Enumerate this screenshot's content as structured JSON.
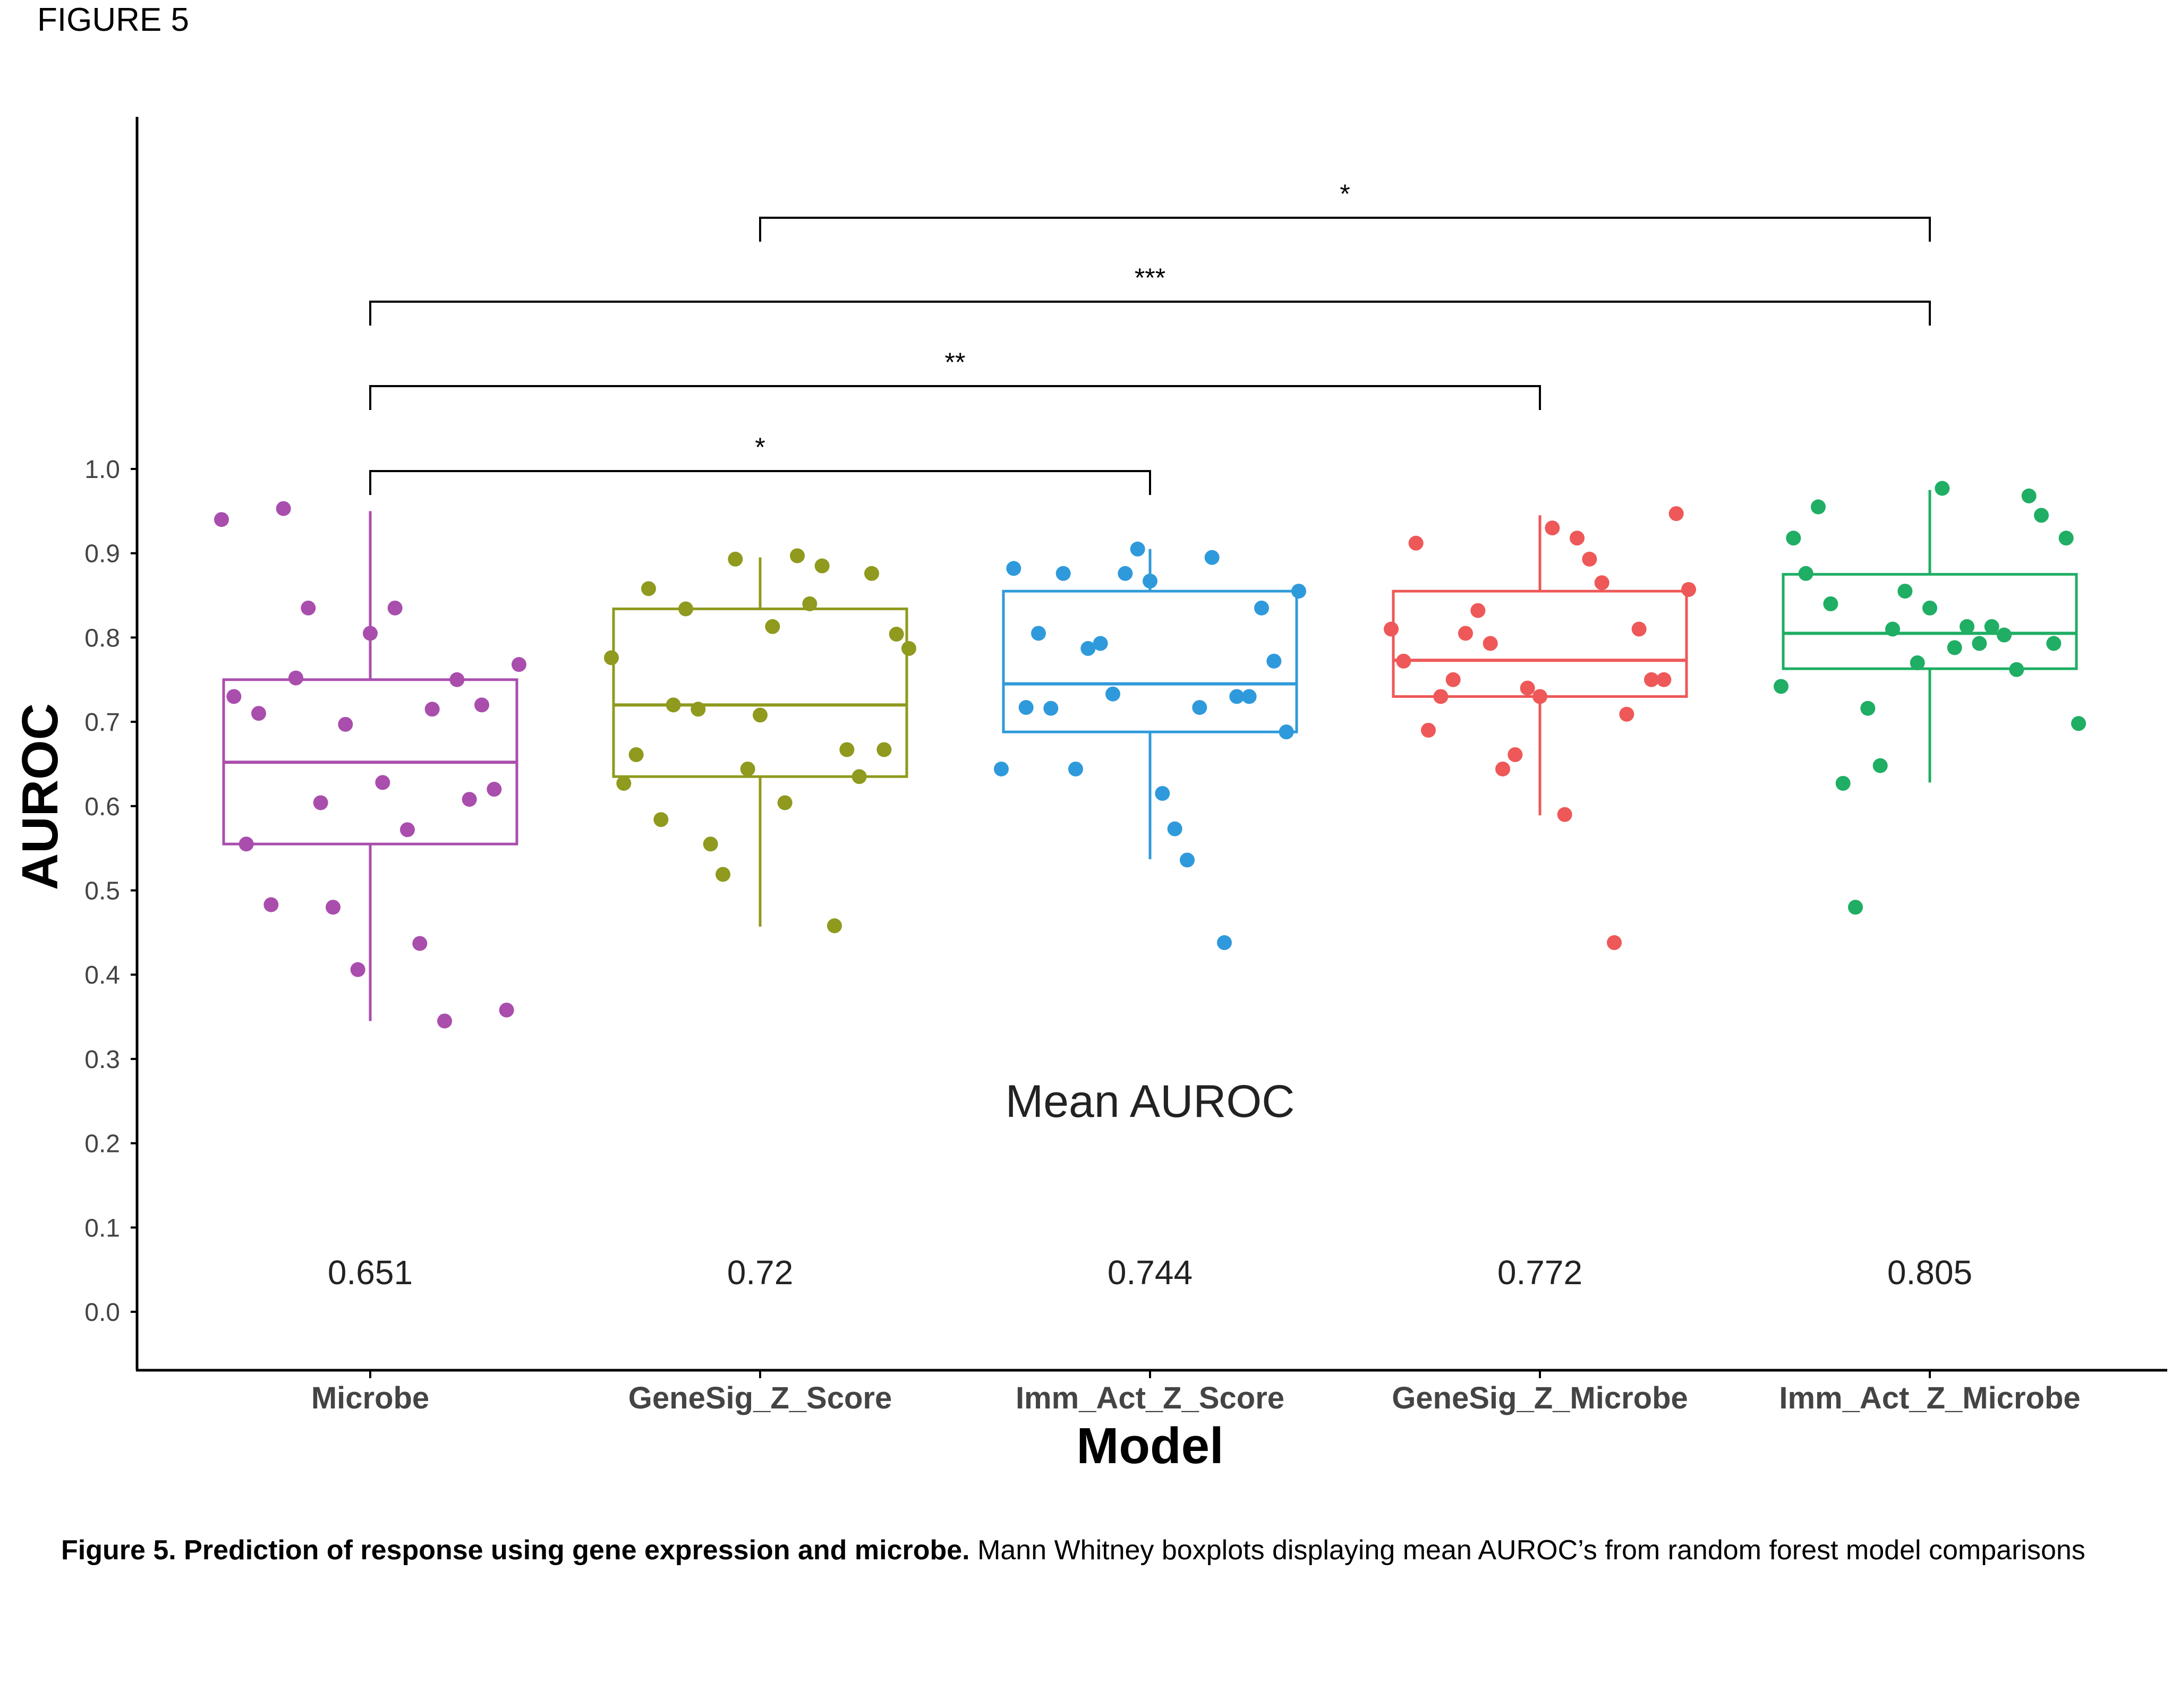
{
  "figure_label": "FIGURE 5",
  "caption": {
    "bold": "Figure 5. Prediction of response using gene expression and microbe.",
    "text": " Mann Whitney boxplots displaying mean AUROC’s from random forest model comparisons"
  },
  "chart_data": {
    "type": "box",
    "xlabel": "Model",
    "ylabel": "AUROC",
    "ylim": [
      0.0,
      1.0
    ],
    "yticks": [
      0.0,
      0.1,
      0.2,
      0.3,
      0.4,
      0.5,
      0.6,
      0.7,
      0.8,
      0.9,
      1.0
    ],
    "ytick_labels": [
      "0.0",
      "0.1",
      "0.2",
      "0.3",
      "0.4",
      "0.5",
      "0.6",
      "0.7",
      "0.8",
      "0.9",
      "1.0"
    ],
    "grid": false,
    "legend": "none",
    "categories": [
      "Microbe",
      "GeneSig_Z_Score",
      "Imm_Act_Z_Score",
      "GeneSig_Z_Microbe",
      "Imm_Act_Z_Microbe"
    ],
    "colors": [
      "#A94EAD",
      "#8F9A1E",
      "#2F9ADB",
      "#EE5858",
      "#1FAE64"
    ],
    "boxes": [
      {
        "whisker_low": 0.345,
        "q1": 0.555,
        "median": 0.652,
        "q3": 0.75,
        "whisker_high": 0.95
      },
      {
        "whisker_low": 0.457,
        "q1": 0.635,
        "median": 0.72,
        "q3": 0.834,
        "whisker_high": 0.895
      },
      {
        "whisker_low": 0.537,
        "q1": 0.688,
        "median": 0.745,
        "q3": 0.855,
        "whisker_high": 0.905
      },
      {
        "whisker_low": 0.589,
        "q1": 0.73,
        "median": 0.773,
        "q3": 0.855,
        "whisker_high": 0.945
      },
      {
        "whisker_low": 0.628,
        "q1": 0.763,
        "median": 0.805,
        "q3": 0.875,
        "whisker_high": 0.975
      }
    ],
    "points": [
      [
        0.94,
        0.835,
        0.835,
        0.72,
        0.71,
        0.697,
        0.715,
        0.768,
        0.752,
        0.628,
        0.608,
        0.555,
        0.48,
        0.437,
        0.358,
        0.953,
        0.805,
        0.75,
        0.73,
        0.604,
        0.572,
        0.62,
        0.483,
        0.406,
        0.345
      ],
      [
        0.776,
        0.715,
        0.604,
        0.876,
        0.858,
        0.893,
        0.885,
        0.787,
        0.834,
        0.813,
        0.635,
        0.661,
        0.519,
        0.84,
        0.804,
        0.72,
        0.708,
        0.667,
        0.627,
        0.555,
        0.897,
        0.667,
        0.584,
        0.644,
        0.458
      ],
      [
        0.644,
        0.787,
        0.573,
        0.835,
        0.805,
        0.876,
        0.895,
        0.855,
        0.644,
        0.615,
        0.73,
        0.717,
        0.733,
        0.717,
        0.688,
        0.876,
        0.867,
        0.73,
        0.882,
        0.793,
        0.536,
        0.772,
        0.716,
        0.905,
        0.438
      ],
      [
        0.81,
        0.832,
        0.59,
        0.75,
        0.69,
        0.661,
        0.865,
        0.857,
        0.805,
        0.93,
        0.81,
        0.912,
        0.644,
        0.893,
        0.947,
        0.75,
        0.73,
        0.709,
        0.772,
        0.793,
        0.918,
        0.75,
        0.73,
        0.74,
        0.438
      ],
      [
        0.742,
        0.716,
        0.788,
        0.945,
        0.955,
        0.855,
        0.813,
        0.698,
        0.48,
        0.977,
        0.968,
        0.876,
        0.81,
        0.793,
        0.918,
        0.627,
        0.835,
        0.762,
        0.918,
        0.648,
        0.813,
        0.793,
        0.84,
        0.77,
        0.803
      ]
    ],
    "mean_label": "Mean AUROC",
    "mean_values": [
      "0.651",
      "0.72",
      "0.744",
      "0.772",
      "0.805"
    ],
    "significance": [
      {
        "from": 1,
        "to": 4,
        "label": "*"
      },
      {
        "from": 0,
        "to": 4,
        "label": "***"
      },
      {
        "from": 0,
        "to": 3,
        "label": "**"
      },
      {
        "from": 0,
        "to": 2,
        "label": "*"
      }
    ]
  }
}
